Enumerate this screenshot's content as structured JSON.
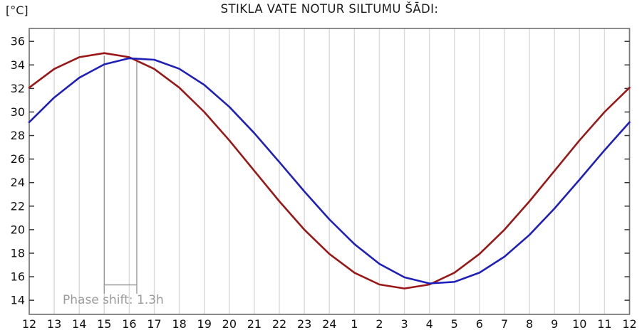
{
  "header": {
    "title": "STIKLA VATE NOTUR SILTUMU ŠĀDI:",
    "y_axis_unit": "[°C]"
  },
  "annotation": {
    "label": "Phase shift: 1.3h",
    "shift_hours": 1.3,
    "from_hour": 15,
    "to_hour": 16.3,
    "line_color": "#9b9b9b",
    "text_color": "#9b9b9b"
  },
  "chart_data": {
    "type": "line",
    "title": "STIKLA VATE NOTUR SILTUMU ŠĀDI:",
    "ylabel": "[°C]",
    "xlabel": "",
    "legend": "none",
    "grid": "vertical-only",
    "xlim": [
      12,
      36
    ],
    "ylim": [
      12.8,
      37.1
    ],
    "x_hours": [
      12,
      13,
      14,
      15,
      16,
      17,
      18,
      19,
      20,
      21,
      22,
      23,
      24,
      25,
      26,
      27,
      28,
      29,
      30,
      31,
      32,
      33,
      34,
      35,
      36
    ],
    "x_tick_labels": [
      "12",
      "13",
      "14",
      "15",
      "16",
      "17",
      "18",
      "19",
      "20",
      "21",
      "22",
      "23",
      "24",
      "1",
      "2",
      "3",
      "4",
      "5",
      "6",
      "7",
      "8",
      "9",
      "10",
      "11",
      "12"
    ],
    "y_ticks": [
      14,
      16,
      18,
      20,
      22,
      24,
      26,
      28,
      30,
      32,
      34,
      36
    ],
    "gridline_color": "#d9d9d9",
    "axis_color": "#777777",
    "tick_color": "#333333",
    "tick_label_color": "#111111",
    "series": [
      {
        "name": "red-curve",
        "color": "#9a1717",
        "peak_hour": 15,
        "values": [
          32.07,
          33.66,
          34.66,
          35.0,
          34.66,
          33.66,
          32.07,
          30.0,
          27.59,
          25.0,
          22.41,
          20.0,
          17.93,
          16.34,
          15.34,
          15.0,
          15.34,
          16.34,
          17.93,
          20.0,
          22.41,
          25.0,
          27.59,
          30.0,
          32.07
        ]
      },
      {
        "name": "blue-curve",
        "color": "#1f1fba",
        "peak_hour": 16.3,
        "values": [
          29.13,
          31.23,
          32.91,
          34.05,
          34.57,
          34.44,
          33.67,
          32.3,
          30.44,
          28.2,
          25.75,
          23.25,
          20.87,
          18.77,
          17.09,
          15.95,
          15.43,
          15.56,
          16.34,
          17.7,
          19.56,
          21.8,
          24.25,
          26.75,
          29.13
        ]
      }
    ]
  }
}
